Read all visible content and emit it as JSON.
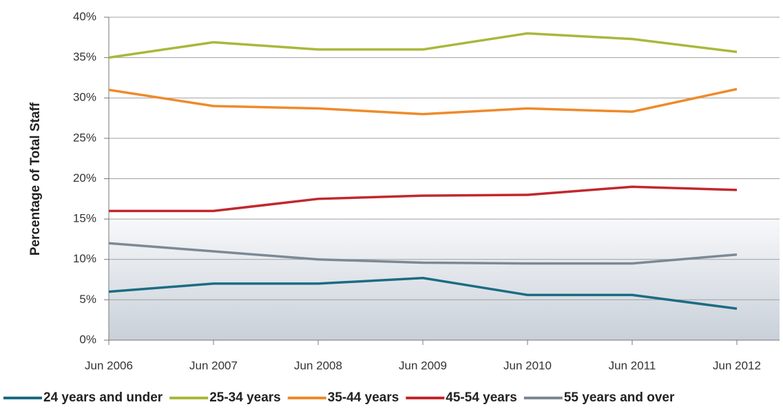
{
  "chart_data": {
    "type": "line",
    "y_axis_label": "Percentage of Total Staff",
    "categories": [
      "Jun 2006",
      "Jun 2007",
      "Jun 2008",
      "Jun 2009",
      "Jun 2010",
      "Jun 2011",
      "Jun 2012"
    ],
    "series": [
      {
        "name": "24 years and under",
        "color": "#1b6c83",
        "values": [
          6,
          7,
          7,
          7.7,
          5.6,
          5.6,
          3.9
        ]
      },
      {
        "name": "25-34 years",
        "color": "#a9b83b",
        "values": [
          35,
          36.9,
          36,
          36,
          38,
          37.3,
          35.7
        ]
      },
      {
        "name": "35-44 years",
        "color": "#ef8a2b",
        "values": [
          31,
          29,
          28.7,
          28,
          28.7,
          28.3,
          31.1
        ]
      },
      {
        "name": "45-54 years",
        "color": "#c1282e",
        "values": [
          16,
          16,
          17.5,
          17.9,
          18,
          19,
          18.6
        ]
      },
      {
        "name": "55 years and over",
        "color": "#7c8995",
        "values": [
          12,
          11,
          10,
          9.6,
          9.5,
          9.5,
          10.6
        ]
      }
    ],
    "ylim": [
      0,
      40
    ],
    "yticks": [
      {
        "value": 0,
        "label": "0%"
      },
      {
        "value": 5,
        "label": "5%"
      },
      {
        "value": 10,
        "label": "10%"
      },
      {
        "value": 15,
        "label": "15%"
      },
      {
        "value": 20,
        "label": "20%"
      },
      {
        "value": 25,
        "label": "25%"
      },
      {
        "value": 30,
        "label": "30%"
      },
      {
        "value": 35,
        "label": "35%"
      },
      {
        "value": 40,
        "label": "40%"
      }
    ],
    "grid": true,
    "legend": "bottom"
  }
}
